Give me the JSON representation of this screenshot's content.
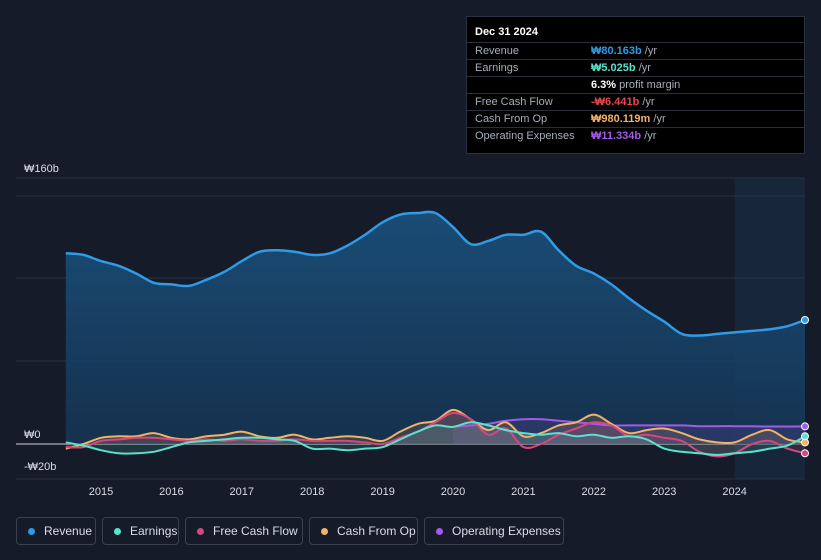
{
  "tooltip": {
    "date": "Dec 31 2024",
    "rows": [
      {
        "label": "Revenue",
        "value": "₩80.163b",
        "unit": " /yr",
        "color": "#2f9be6"
      },
      {
        "label": "Earnings",
        "value": "₩5.025b",
        "unit": " /yr",
        "color": "#5ae2cf"
      },
      {
        "label": "",
        "value": "6.3%",
        "unit": " profit margin",
        "color": "#ffffff"
      },
      {
        "label": "Free Cash Flow",
        "value": "-₩6.441b",
        "unit": " /yr",
        "color": "#e5484d"
      },
      {
        "label": "Cash From Op",
        "value": "₩980.119m",
        "unit": " /yr",
        "color": "#f3b266"
      },
      {
        "label": "Operating Expenses",
        "value": "₩11.334b",
        "unit": " /yr",
        "color": "#a45ae8"
      }
    ]
  },
  "legend": [
    {
      "label": "Revenue",
      "color": "#2f9be6"
    },
    {
      "label": "Earnings",
      "color": "#5ae2cf"
    },
    {
      "label": "Free Cash Flow",
      "color": "#d6477f"
    },
    {
      "label": "Cash From Op",
      "color": "#f3b266"
    },
    {
      "label": "Operating Expenses",
      "color": "#a45ae8"
    }
  ],
  "chart_data": {
    "type": "area",
    "ylim": [
      -20,
      160
    ],
    "y_tick_labels": [
      {
        "value": 160,
        "label": "₩160b"
      },
      {
        "value": 0,
        "label": "₩0"
      },
      {
        "value": -20,
        "label": "-₩20b"
      }
    ],
    "x_tick_labels": [
      "2015",
      "2016",
      "2017",
      "2018",
      "2019",
      "2020",
      "2021",
      "2022",
      "2023",
      "2024"
    ],
    "xlim": [
      2014.3,
      2025.0
    ],
    "forecast_start": 2024.0,
    "series": [
      {
        "name": "Revenue",
        "color": "#2f9be6",
        "points": [
          [
            2014.5,
            123
          ],
          [
            2014.75,
            122
          ],
          [
            2015.0,
            118
          ],
          [
            2015.25,
            115
          ],
          [
            2015.5,
            110
          ],
          [
            2015.75,
            104
          ],
          [
            2016.0,
            103
          ],
          [
            2016.25,
            102
          ],
          [
            2016.5,
            106
          ],
          [
            2016.75,
            111
          ],
          [
            2017.0,
            118
          ],
          [
            2017.25,
            124
          ],
          [
            2017.5,
            125
          ],
          [
            2017.75,
            124
          ],
          [
            2018.0,
            122
          ],
          [
            2018.25,
            123
          ],
          [
            2018.5,
            128
          ],
          [
            2018.75,
            135
          ],
          [
            2019.0,
            143
          ],
          [
            2019.25,
            148
          ],
          [
            2019.5,
            149
          ],
          [
            2019.75,
            149
          ],
          [
            2020.0,
            140
          ],
          [
            2020.25,
            129
          ],
          [
            2020.5,
            131
          ],
          [
            2020.75,
            135
          ],
          [
            2021.0,
            135
          ],
          [
            2021.25,
            137
          ],
          [
            2021.5,
            125
          ],
          [
            2021.75,
            115
          ],
          [
            2022.0,
            110
          ],
          [
            2022.25,
            103
          ],
          [
            2022.5,
            94
          ],
          [
            2022.75,
            86
          ],
          [
            2023.0,
            79
          ],
          [
            2023.25,
            71
          ],
          [
            2023.5,
            70
          ],
          [
            2023.75,
            71
          ],
          [
            2024.0,
            72
          ],
          [
            2024.25,
            73
          ],
          [
            2024.5,
            74
          ],
          [
            2024.75,
            76
          ],
          [
            2025.0,
            80
          ]
        ]
      },
      {
        "name": "Earnings",
        "color": "#5ae2cf",
        "points": [
          [
            2014.5,
            1
          ],
          [
            2014.75,
            -1
          ],
          [
            2015.0,
            -4
          ],
          [
            2015.25,
            -6
          ],
          [
            2015.5,
            -6
          ],
          [
            2015.75,
            -5
          ],
          [
            2016.0,
            -2
          ],
          [
            2016.25,
            1
          ],
          [
            2016.5,
            2
          ],
          [
            2016.75,
            3
          ],
          [
            2017.0,
            4
          ],
          [
            2017.25,
            4
          ],
          [
            2017.5,
            3
          ],
          [
            2017.75,
            2
          ],
          [
            2018.0,
            -3
          ],
          [
            2018.25,
            -3
          ],
          [
            2018.5,
            -4
          ],
          [
            2018.75,
            -3
          ],
          [
            2019.0,
            -2
          ],
          [
            2019.25,
            3
          ],
          [
            2019.5,
            8
          ],
          [
            2019.75,
            12
          ],
          [
            2020.0,
            11
          ],
          [
            2020.25,
            14
          ],
          [
            2020.5,
            12
          ],
          [
            2020.75,
            9
          ],
          [
            2021.0,
            7
          ],
          [
            2021.25,
            6
          ],
          [
            2021.5,
            7
          ],
          [
            2021.75,
            5
          ],
          [
            2022.0,
            6
          ],
          [
            2022.25,
            4
          ],
          [
            2022.5,
            5
          ],
          [
            2022.75,
            3
          ],
          [
            2023.0,
            -3
          ],
          [
            2023.25,
            -5
          ],
          [
            2023.5,
            -6
          ],
          [
            2023.75,
            -7
          ],
          [
            2024.0,
            -6
          ],
          [
            2024.25,
            -5
          ],
          [
            2024.5,
            -3
          ],
          [
            2024.75,
            -1
          ],
          [
            2025.0,
            5
          ]
        ]
      },
      {
        "name": "Free Cash Flow",
        "color": "#d6477f",
        "points": [
          [
            2014.5,
            -2
          ],
          [
            2014.75,
            -2
          ],
          [
            2015.0,
            2
          ],
          [
            2015.25,
            3
          ],
          [
            2015.5,
            4
          ],
          [
            2015.75,
            4
          ],
          [
            2016.0,
            3
          ],
          [
            2016.25,
            2
          ],
          [
            2016.5,
            3
          ],
          [
            2016.75,
            2
          ],
          [
            2017.0,
            3
          ],
          [
            2017.25,
            2
          ],
          [
            2017.5,
            2
          ],
          [
            2017.75,
            3
          ],
          [
            2018.0,
            2
          ],
          [
            2018.25,
            2
          ],
          [
            2018.5,
            2
          ],
          [
            2018.75,
            1
          ],
          [
            2019.0,
            0
          ],
          [
            2019.25,
            4
          ],
          [
            2019.5,
            8
          ],
          [
            2019.75,
            14
          ],
          [
            2020.0,
            20
          ],
          [
            2020.25,
            16
          ],
          [
            2020.5,
            6
          ],
          [
            2020.75,
            10
          ],
          [
            2021.0,
            -2
          ],
          [
            2021.25,
            0
          ],
          [
            2021.5,
            6
          ],
          [
            2021.75,
            10
          ],
          [
            2022.0,
            14
          ],
          [
            2022.25,
            12
          ],
          [
            2022.5,
            5
          ],
          [
            2022.75,
            6
          ],
          [
            2023.0,
            4
          ],
          [
            2023.25,
            2
          ],
          [
            2023.5,
            -5
          ],
          [
            2023.75,
            -8
          ],
          [
            2024.0,
            -6
          ],
          [
            2024.25,
            0
          ],
          [
            2024.5,
            2
          ],
          [
            2024.75,
            -3
          ],
          [
            2025.0,
            -6
          ]
        ]
      },
      {
        "name": "Cash From Op",
        "color": "#f3b266",
        "points": [
          [
            2014.5,
            -3
          ],
          [
            2014.75,
            0
          ],
          [
            2015.0,
            4
          ],
          [
            2015.25,
            5
          ],
          [
            2015.5,
            5
          ],
          [
            2015.75,
            7
          ],
          [
            2016.0,
            4
          ],
          [
            2016.25,
            3
          ],
          [
            2016.5,
            5
          ],
          [
            2016.75,
            6
          ],
          [
            2017.0,
            8
          ],
          [
            2017.25,
            5
          ],
          [
            2017.5,
            4
          ],
          [
            2017.75,
            6
          ],
          [
            2018.0,
            3
          ],
          [
            2018.25,
            4
          ],
          [
            2018.5,
            5
          ],
          [
            2018.75,
            4
          ],
          [
            2019.0,
            2
          ],
          [
            2019.25,
            8
          ],
          [
            2019.5,
            13
          ],
          [
            2019.75,
            15
          ],
          [
            2020.0,
            22
          ],
          [
            2020.25,
            16
          ],
          [
            2020.5,
            9
          ],
          [
            2020.75,
            14
          ],
          [
            2021.0,
            5
          ],
          [
            2021.25,
            7
          ],
          [
            2021.5,
            12
          ],
          [
            2021.75,
            14
          ],
          [
            2022.0,
            19
          ],
          [
            2022.25,
            13
          ],
          [
            2022.5,
            7
          ],
          [
            2022.75,
            9
          ],
          [
            2023.0,
            10
          ],
          [
            2023.25,
            7
          ],
          [
            2023.5,
            3
          ],
          [
            2023.75,
            1
          ],
          [
            2024.0,
            1
          ],
          [
            2024.25,
            6
          ],
          [
            2024.5,
            9
          ],
          [
            2024.75,
            3
          ],
          [
            2025.0,
            1
          ]
        ]
      },
      {
        "name": "Operating Expenses",
        "color": "#a45ae8",
        "points": [
          [
            2020.0,
            11
          ],
          [
            2020.25,
            12
          ],
          [
            2020.5,
            13
          ],
          [
            2020.75,
            15
          ],
          [
            2021.0,
            16
          ],
          [
            2021.25,
            16
          ],
          [
            2021.5,
            15
          ],
          [
            2021.75,
            14
          ],
          [
            2022.0,
            13
          ],
          [
            2022.25,
            12
          ],
          [
            2022.5,
            12
          ],
          [
            2022.75,
            12
          ],
          [
            2023.0,
            12
          ],
          [
            2023.25,
            12
          ],
          [
            2023.5,
            11.5
          ],
          [
            2023.75,
            11.5
          ],
          [
            2024.0,
            11.5
          ],
          [
            2024.25,
            11.4
          ],
          [
            2024.5,
            11.3
          ],
          [
            2024.75,
            11.3
          ],
          [
            2025.0,
            11.334
          ]
        ]
      }
    ]
  }
}
